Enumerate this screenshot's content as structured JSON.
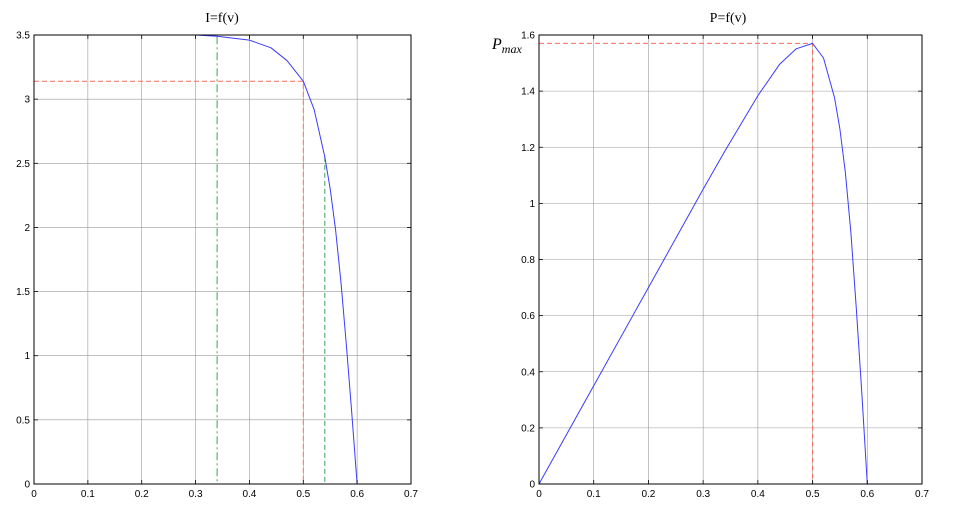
{
  "chart_data": [
    {
      "type": "line",
      "title": "I=f(v)",
      "xlabel": "",
      "ylabel": "",
      "xlim": [
        0,
        0.7
      ],
      "ylim": [
        0,
        3.5
      ],
      "xticks": [
        "0",
        "0.1",
        "0.2",
        "0.3",
        "0.4",
        "0.5",
        "0.6",
        "0.7"
      ],
      "yticks": [
        "0",
        "0.5",
        "1",
        "1.5",
        "2",
        "2.5",
        "3",
        "3.5"
      ],
      "grid": true,
      "series": [
        {
          "color": "#3b3bff",
          "x": [
            0,
            0.1,
            0.2,
            0.3,
            0.34,
            0.4,
            0.44,
            0.47,
            0.5,
            0.52,
            0.54,
            0.55,
            0.56,
            0.57,
            0.58,
            0.59,
            0.6
          ],
          "y": [
            3.5,
            3.5,
            3.5,
            3.5,
            3.49,
            3.46,
            3.4,
            3.3,
            3.14,
            2.92,
            2.55,
            2.3,
            1.98,
            1.57,
            1.08,
            0.55,
            0.0
          ]
        }
      ],
      "reference_lines": [
        {
          "color": "#ff6a5a",
          "style": "dashed",
          "points": [
            [
              0,
              3.14
            ],
            [
              0.5,
              3.14
            ],
            [
              0.5,
              0
            ]
          ]
        },
        {
          "color": "#3aa55a",
          "style": "dashdot",
          "points": [
            [
              0.34,
              3.49
            ],
            [
              0.34,
              0
            ]
          ]
        },
        {
          "color": "#3aa55a",
          "style": "dashed",
          "points": [
            [
              0.54,
              2.55
            ],
            [
              0.54,
              0
            ]
          ]
        }
      ]
    },
    {
      "type": "line",
      "title": "P=f(v)",
      "xlabel": "",
      "ylabel": "",
      "xlim": [
        0,
        0.7
      ],
      "ylim": [
        0,
        1.6
      ],
      "xticks": [
        "0",
        "0.1",
        "0.2",
        "0.3",
        "0.4",
        "0.5",
        "0.6",
        "0.7"
      ],
      "yticks": [
        "0",
        "0.2",
        "0.4",
        "0.6",
        "0.8",
        "1",
        "1.2",
        "1.4",
        "1.6"
      ],
      "grid": true,
      "annotation": {
        "text": "P",
        "subscript": "max",
        "y": 1.57
      },
      "series": [
        {
          "color": "#3b3bff",
          "x": [
            0,
            0.1,
            0.2,
            0.3,
            0.34,
            0.4,
            0.44,
            0.47,
            0.5,
            0.52,
            0.54,
            0.55,
            0.56,
            0.57,
            0.58,
            0.59,
            0.6
          ],
          "y": [
            0,
            0.35,
            0.7,
            1.05,
            1.187,
            1.384,
            1.496,
            1.551,
            1.57,
            1.518,
            1.377,
            1.265,
            1.109,
            0.895,
            0.626,
            0.325,
            0.0
          ]
        }
      ],
      "reference_lines": [
        {
          "color": "#ff6a5a",
          "style": "dashed",
          "points": [
            [
              0,
              1.57
            ],
            [
              0.5,
              1.57
            ],
            [
              0.5,
              0
            ]
          ]
        }
      ]
    }
  ]
}
